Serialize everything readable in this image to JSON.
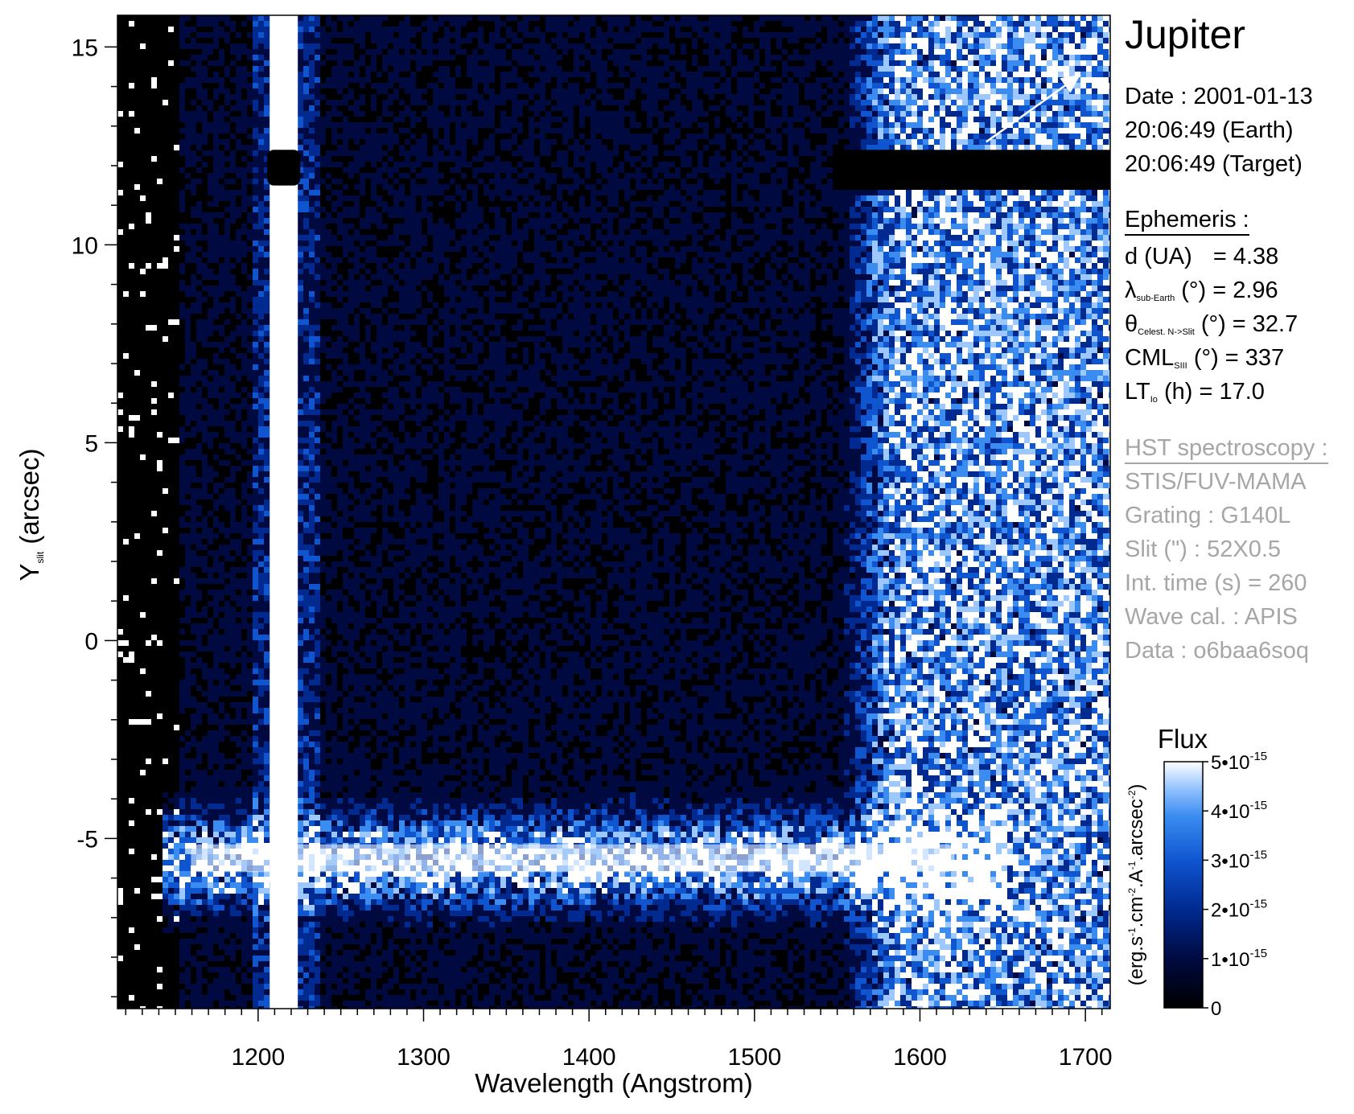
{
  "colors": {
    "background": "#000000",
    "cmap": [
      "#000000",
      "#000a40",
      "#002a90",
      "#0f55d0",
      "#3a8cf0",
      "#9cc8ff",
      "#ffffff"
    ],
    "info_primary": "#000000",
    "info_secondary": "#a6a6a6"
  },
  "info": {
    "target": "Jupiter",
    "date_line": "Date : 2001-01-13",
    "earth_time_line": "20:06:49 (Earth)",
    "target_time_line": "20:06:49 (Target)",
    "ephemeris_header": "Ephemeris :",
    "ephemeris": {
      "d_label": "d (UA)",
      "d_value": "= 4.38",
      "lambda_symbol": "λ",
      "lambda_sub": "sub-Earth",
      "lambda_value": "(°)  = 2.96",
      "theta_symbol": "θ",
      "theta_sub": "Celest. N->Slit",
      "theta_value": "(°) = 32.7",
      "cml_symbol": "CML",
      "cml_sub": "SIII",
      "cml_value": "(°) = 337",
      "lt_symbol": "LT",
      "lt_sub": "Io",
      "lt_value": "(h) = 17.0"
    },
    "hst_header": "HST spectroscopy :",
    "hst": {
      "instrument": "STIS/FUV-MAMA",
      "grating": "Grating : G140L",
      "slit": "Slit (\") : 52X0.5",
      "int_time": "Int. time (s) = 260",
      "wave_cal": "Wave cal. : APIS",
      "data_id": "Data : o6baa6soq"
    }
  },
  "chart_data": {
    "type": "heatmap",
    "title": "",
    "xlabel": "Wavelength (Angstrom)",
    "ylabel_main": "Y",
    "ylabel_sub": "slit",
    "ylabel_rest": " (arcsec)",
    "xlim": [
      1115,
      1715
    ],
    "ylim": [
      -9.3,
      15.8
    ],
    "x_ticks": [
      1200,
      1300,
      1400,
      1500,
      1600,
      1700
    ],
    "x_tick_labels": [
      "1200",
      "1300",
      "1400",
      "1500",
      "1600",
      "1700"
    ],
    "y_ticks": [
      -5,
      0,
      5,
      10,
      15
    ],
    "y_tick_labels": [
      "-5",
      "0",
      "5",
      "10",
      "15"
    ],
    "colorbar": {
      "title": "Flux",
      "label": "(erg.s-1.cm-2.A-1.arcsec-2)",
      "range": [
        0,
        5e-15
      ],
      "ticks": [
        0,
        1e-15,
        2e-15,
        3e-15,
        4e-15,
        5e-15
      ],
      "tick_labels": [
        "0",
        "1•10-15",
        "2•10-15",
        "3•10-15",
        "4•10-15",
        "5•10-15"
      ]
    },
    "features": {
      "lyman_alpha_line": {
        "wavelength_range": [
          1207,
          1224
        ],
        "y_range": [
          -9.3,
          15.8
        ]
      },
      "slit_gap": {
        "y_range": [
          11.5,
          12.4
        ]
      },
      "auroral_band": {
        "wavelength_range": [
          1140,
          1650
        ],
        "y_center": -5.5,
        "y_halfwidth": 0.8
      },
      "continuum_edge_wavelength": 1550,
      "arrow": {
        "from": [
          1640,
          12.6
        ],
        "to": [
          1697,
          14.3
        ]
      }
    }
  }
}
